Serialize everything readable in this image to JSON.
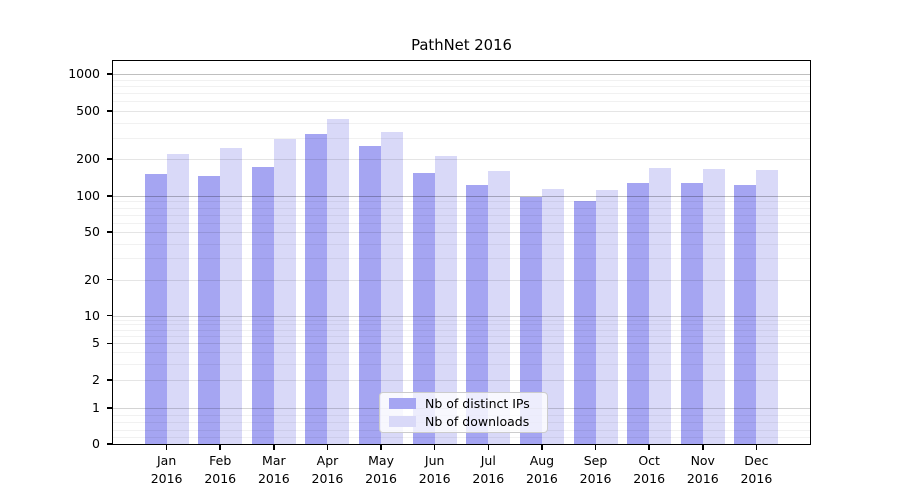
{
  "title": "PathNet 2016",
  "chart_data": {
    "type": "bar",
    "title": "PathNet 2016",
    "yscale": "symlog",
    "grid": true,
    "legend_position": "lower center",
    "ylim": [
      0,
      1280
    ],
    "y_ticks": [
      0,
      1,
      2,
      5,
      10,
      20,
      50,
      100,
      200,
      500,
      1000
    ],
    "y_tick_labels": [
      "0",
      "1",
      "2",
      "5",
      "10",
      "20",
      "50",
      "100",
      "200",
      "500",
      "1000"
    ],
    "categories": [
      "Jan",
      "Feb",
      "Mar",
      "Apr",
      "May",
      "Jun",
      "Jul",
      "Aug",
      "Sep",
      "Oct",
      "Nov",
      "Dec"
    ],
    "x_tick_second_line": "2016",
    "series": [
      {
        "name": "Nb of distinct IPs",
        "color": "#a5a5f2",
        "values": [
          152,
          147,
          173,
          320,
          255,
          153,
          122,
          99,
          90,
          128,
          127,
          123
        ]
      },
      {
        "name": "Nb of downloads",
        "color": "#d9d9f8",
        "values": [
          220,
          246,
          296,
          430,
          335,
          211,
          161,
          114,
          113,
          171,
          166,
          162
        ]
      }
    ]
  },
  "legend": {
    "item1": "Nb of distinct IPs",
    "item2": "Nb of downloads"
  },
  "colors": {
    "distinct_ips": "#a5a5f2",
    "downloads": "#d9d9f8",
    "grid_major": "#bfbfbf",
    "grid_light": "#e5e5e5",
    "spine": "#000000"
  }
}
